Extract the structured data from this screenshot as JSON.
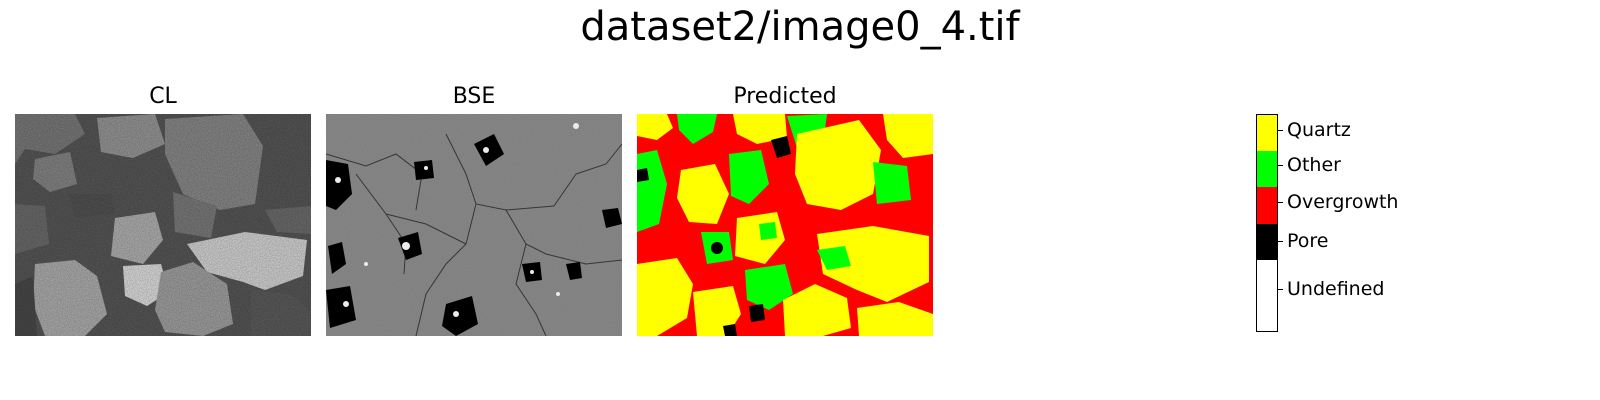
{
  "figure": {
    "title": "dataset2/image0_4.tif"
  },
  "panels": [
    {
      "id": "cl",
      "title": "CL"
    },
    {
      "id": "bse",
      "title": "BSE"
    },
    {
      "id": "predicted",
      "title": "Predicted"
    }
  ],
  "legend": {
    "items": [
      {
        "label": "Quartz",
        "color": "#ffff00"
      },
      {
        "label": "Other",
        "color": "#00ff00"
      },
      {
        "label": "Overgrowth",
        "color": "#ff0000"
      },
      {
        "label": "Pore",
        "color": "#000000"
      },
      {
        "label": "Undefined",
        "color": "#ffffff"
      }
    ]
  }
}
